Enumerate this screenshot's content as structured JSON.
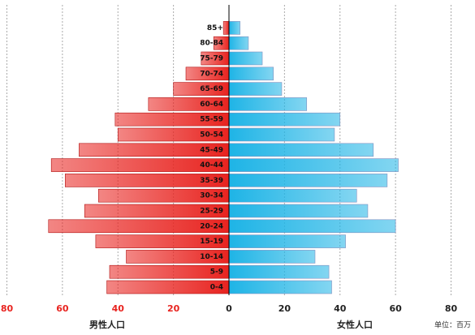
{
  "chart_data": {
    "type": "pyramid",
    "categories": [
      "0-4",
      "5-9",
      "10-14",
      "15-19",
      "20-24",
      "25-29",
      "30-34",
      "35-39",
      "40-44",
      "45-49",
      "50-54",
      "55-59",
      "60-64",
      "65-69",
      "70-74",
      "75-79",
      "80-84",
      "85+"
    ],
    "series": [
      {
        "name": "男性人口",
        "color": "#e8231f",
        "side": "left",
        "values": [
          44,
          43,
          37,
          48,
          65,
          52,
          47,
          59,
          64,
          54,
          40,
          41,
          29,
          20,
          15.5,
          10,
          5.5,
          2
        ]
      },
      {
        "name": "女性人口",
        "color": "#1eb4e6",
        "side": "right",
        "values": [
          37,
          36,
          31,
          42,
          60,
          50,
          46,
          57,
          61,
          52,
          38,
          40,
          28,
          19,
          16,
          12,
          7,
          4
        ]
      }
    ],
    "xlim": [
      0,
      80
    ],
    "xticks": [
      0,
      20,
      40,
      60,
      80
    ],
    "xticks_left": [
      20,
      40,
      60,
      80
    ],
    "unit": "单位：百万",
    "grid": true
  }
}
